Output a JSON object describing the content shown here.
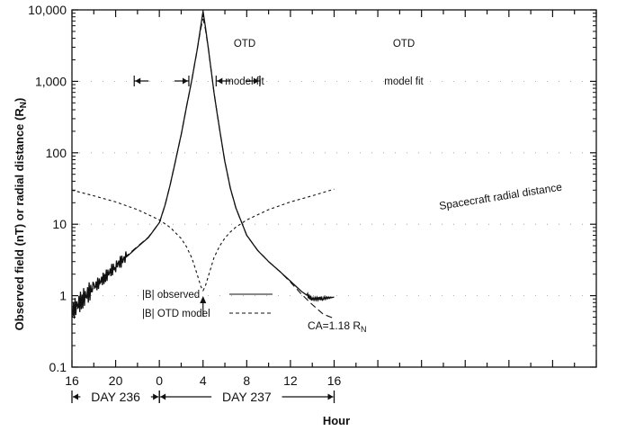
{
  "chart_data": {
    "type": "line",
    "xlabel": "Hour",
    "ylabel": "Observed field (nT) or radial distance (R",
    "ylabel_sub": "N",
    "ylabel_tail": ")",
    "y_scale": "log",
    "ylim": [
      0.1,
      10000
    ],
    "xlim_hours_from_day236_0000": [
      -8,
      40
    ],
    "x_ticks": [
      {
        "h": -8,
        "label": "16"
      },
      {
        "h": -4,
        "label": "20"
      },
      {
        "h": 0,
        "label": "0"
      },
      {
        "h": 4,
        "label": "4"
      },
      {
        "h": 8,
        "label": "8"
      },
      {
        "h": 12,
        "label": "12"
      },
      {
        "h": 16,
        "label": "16"
      }
    ],
    "y_ticks": [
      {
        "v": 0.1,
        "label": "0.1"
      },
      {
        "v": 1,
        "label": "1"
      },
      {
        "v": 10,
        "label": "10"
      },
      {
        "v": 100,
        "label": "100"
      },
      {
        "v": 1000,
        "label": "1,000"
      },
      {
        "v": 10000,
        "label": "10,000"
      }
    ],
    "day_labels": [
      {
        "label": "DAY 236",
        "from_h": -8,
        "to_h": 0
      },
      {
        "label": "DAY 237",
        "from_h": 0,
        "to_h": 16
      }
    ],
    "annotations": {
      "otd_left": [
        "OTD",
        "model fit"
      ],
      "otd_right": [
        "OTD",
        "model fit"
      ],
      "radial_label": "Spacecraft radial distance",
      "ca_label": "CA=1.18 R",
      "ca_sub": "N"
    },
    "legend": {
      "placement": "lower-left",
      "items": [
        {
          "label": "|B| observed",
          "style": "solid"
        },
        {
          "label": "|B| OTD model",
          "style": "dashed"
        }
      ]
    },
    "series": [
      {
        "name": "|B| observed",
        "style": "solid",
        "x": [
          -8,
          -7,
          -6,
          -5,
          -4,
          -3,
          -2,
          -1,
          0,
          0.5,
          1,
          1.5,
          2,
          2.5,
          3,
          3.5,
          3.8,
          4,
          4.2,
          4.5,
          5,
          5.5,
          6,
          6.5,
          7,
          8,
          9,
          10,
          11,
          12,
          13,
          14,
          15,
          16
        ],
        "y": [
          0.6,
          0.9,
          1.3,
          1.8,
          2.6,
          3.5,
          4.8,
          6.5,
          10.5,
          18,
          36,
          80,
          180,
          450,
          1100,
          3000,
          6000,
          9500,
          6000,
          2800,
          700,
          220,
          75,
          32,
          17,
          7,
          4.3,
          3,
          2.2,
          1.6,
          1.15,
          0.9,
          0.92,
          0.95
        ]
      },
      {
        "name": "|B| OTD model",
        "style": "dashed",
        "x": [
          -8,
          -7,
          -6,
          -5,
          -4,
          -3,
          -2,
          -1,
          0,
          0.5,
          1,
          1.5,
          2,
          2.5,
          3,
          3.5,
          3.8,
          4,
          4.2,
          4.5,
          5,
          5.5,
          6,
          6.5,
          7,
          8,
          9,
          10,
          11,
          12,
          13,
          14,
          15,
          16
        ],
        "y": [
          0.5,
          0.85,
          1.3,
          1.85,
          2.7,
          3.6,
          4.9,
          6.6,
          10.5,
          18,
          36,
          80,
          180,
          450,
          1100,
          3000,
          5500,
          7500,
          5500,
          2800,
          700,
          220,
          75,
          32,
          17,
          7,
          4.3,
          3,
          2.2,
          1.55,
          1.05,
          0.75,
          0.55,
          0.48
        ]
      },
      {
        "name": "Spacecraft radial distance",
        "style": "dashed",
        "x": [
          -8,
          -6,
          -4,
          -2,
          0,
          1,
          2,
          2.5,
          3,
          3.5,
          3.8,
          4,
          4.2,
          4.5,
          5,
          5.5,
          6,
          6.5,
          7,
          8,
          10,
          12,
          14,
          16
        ],
        "y": [
          30,
          25,
          20.5,
          16,
          11.5,
          9,
          6.3,
          4.8,
          3.3,
          1.9,
          1.35,
          1.18,
          1.35,
          1.9,
          3.4,
          4.9,
          6.4,
          7.8,
          9.1,
          11.5,
          16,
          20.5,
          25,
          31
        ]
      }
    ]
  }
}
